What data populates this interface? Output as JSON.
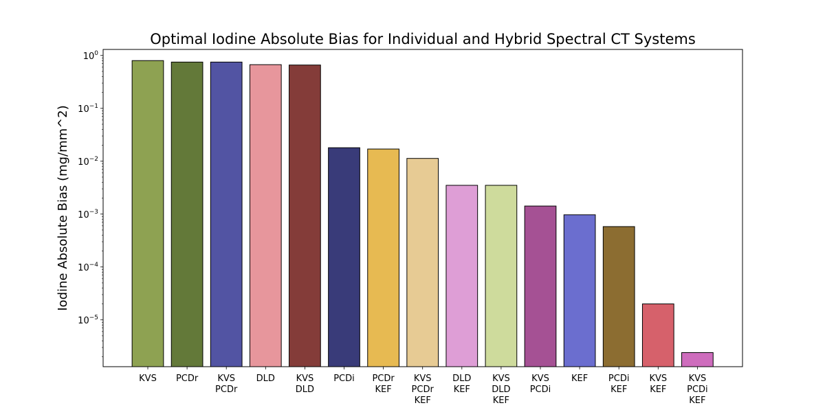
{
  "chart_data": {
    "type": "bar",
    "title": "Optimal Iodine Absolute Bias for Individual and Hybrid Spectral CT Systems",
    "xlabel": "",
    "ylabel": "Iodine Absolute Bias (mg/mm^2)",
    "yscale": "log",
    "ylim": [
      1.3e-06,
      1.3
    ],
    "grid": false,
    "legend": "none",
    "y_ticks": [
      {
        "value": 1,
        "base": "10",
        "exp": "0"
      },
      {
        "value": 0.1,
        "base": "10",
        "exp": "−1"
      },
      {
        "value": 0.01,
        "base": "10",
        "exp": "−2"
      },
      {
        "value": 0.001,
        "base": "10",
        "exp": "−3"
      },
      {
        "value": 0.0001,
        "base": "10",
        "exp": "−4"
      },
      {
        "value": 1e-05,
        "base": "10",
        "exp": "−5"
      }
    ],
    "categories": [
      [
        "KVS"
      ],
      [
        "PCDr"
      ],
      [
        "KVS",
        "PCDr"
      ],
      [
        "DLD"
      ],
      [
        "KVS",
        "DLD"
      ],
      [
        "PCDi"
      ],
      [
        "PCDr",
        "KEF"
      ],
      [
        "KVS",
        "PCDr",
        "KEF"
      ],
      [
        "DLD",
        "KEF"
      ],
      [
        "KVS",
        "DLD",
        "KEF"
      ],
      [
        "KVS",
        "PCDi"
      ],
      [
        "KEF"
      ],
      [
        "PCDi",
        "KEF"
      ],
      [
        "KVS",
        "KEF"
      ],
      [
        "KVS",
        "PCDi",
        "KEF"
      ]
    ],
    "values": [
      0.8,
      0.75,
      0.75,
      0.67,
      0.66,
      0.018,
      0.017,
      0.0113,
      0.0035,
      0.0035,
      0.00142,
      0.00097,
      0.00058,
      2e-05,
      2.4e-06
    ],
    "colors": [
      "#8ea252",
      "#637939",
      "#5254a3",
      "#e7969c",
      "#843c39",
      "#393b79",
      "#e7ba52",
      "#e7cb94",
      "#de9ed6",
      "#cedb9c",
      "#a55194",
      "#6b6ecf",
      "#8c6d31",
      "#d6616b",
      "#ce6dbd"
    ],
    "edge_color": "#000000"
  }
}
